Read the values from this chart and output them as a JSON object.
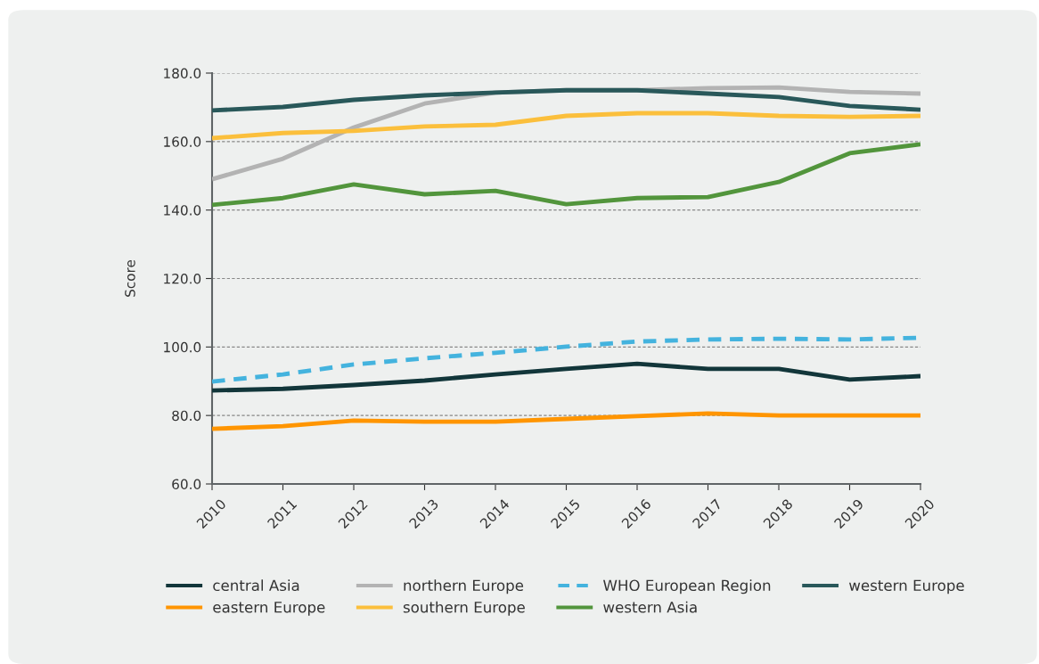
{
  "chart_data": {
    "type": "line",
    "ylabel": "Score",
    "categories": [
      "2010",
      "2011",
      "2012",
      "2013",
      "2014",
      "2015",
      "2016",
      "2017",
      "2018",
      "2019",
      "2020"
    ],
    "ylim": [
      60,
      180
    ],
    "yticks": [
      {
        "value": 60,
        "label": "60.0"
      },
      {
        "value": 80,
        "label": "80.0"
      },
      {
        "value": 100,
        "label": "100.0"
      },
      {
        "value": 120,
        "label": "120.0"
      },
      {
        "value": 140,
        "label": "140.0"
      },
      {
        "value": 160,
        "label": "160.0"
      },
      {
        "value": 180,
        "label": "180.0"
      }
    ],
    "grid": "y",
    "legend": "bottom",
    "marker": "none",
    "series": [
      {
        "name": "central Asia",
        "color": "#12363a",
        "values": [
          87.3,
          87.8,
          88.9,
          90.2,
          92.0,
          93.6,
          95.1,
          93.6,
          93.6,
          90.5,
          91.5
        ]
      },
      {
        "name": "eastern Europe",
        "color": "#ff9500",
        "values": [
          76.1,
          76.9,
          78.5,
          78.2,
          78.2,
          79.0,
          79.8,
          80.6,
          80.0,
          80.0,
          80.0
        ]
      },
      {
        "name": "northern Europe",
        "color": "#b3b3b3",
        "values": [
          149.0,
          155.0,
          164.1,
          171.1,
          174.3,
          175.0,
          175.0,
          175.6,
          175.8,
          174.5,
          174.0
        ]
      },
      {
        "name": "southern Europe",
        "color": "#fbbf3c",
        "values": [
          161.0,
          162.5,
          163.1,
          164.4,
          164.9,
          167.5,
          168.3,
          168.3,
          167.5,
          167.2,
          167.5
        ]
      },
      {
        "name": "WHO European Region",
        "color": "#44b3de",
        "line_style": "dashed",
        "values": [
          89.9,
          92.0,
          94.9,
          96.7,
          98.3,
          100.1,
          101.6,
          102.2,
          102.4,
          102.2,
          102.7
        ]
      },
      {
        "name": "western Asia",
        "color": "#52953c",
        "values": [
          141.5,
          143.5,
          147.5,
          144.6,
          145.6,
          141.7,
          143.5,
          143.8,
          148.2,
          156.6,
          159.2
        ]
      },
      {
        "name": "western Europe",
        "color": "#29585a",
        "values": [
          169.1,
          170.1,
          172.2,
          173.5,
          174.3,
          175.0,
          175.0,
          174.0,
          173.0,
          170.4,
          169.3
        ]
      }
    ]
  }
}
